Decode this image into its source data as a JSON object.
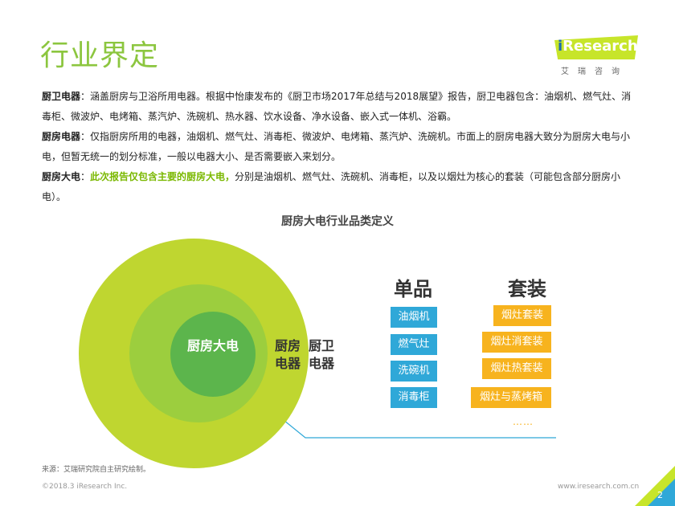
{
  "title": "行业界定",
  "logo": {
    "prefix": "i",
    "name": "Research",
    "subtitle": "艾瑞咨询"
  },
  "paragraphs": {
    "p1_label": "厨卫电器",
    "p1_text": "：涵盖厨房与卫浴所用电器。根据中怡康发布的《厨卫市场2017年总结与2018展望》报告，厨卫电器包含：油烟机、燃气灶、消毒柜、微波炉、电烤箱、蒸汽炉、洗碗机、热水器、饮水设备、净水设备、嵌入式一体机、浴霸。",
    "p2_label": "厨房电器",
    "p2_text": "：仅指厨房所用的电器，油烟机、燃气灶、消毒柜、微波炉、电烤箱、蒸汽炉、洗碗机。市面上的厨房电器大致分为厨房大电与小电，但暂无统一的划分标准，一般以电器大小、是否需要嵌入来划分。",
    "p3_label": "厨房大电",
    "p3_colon": "：",
    "p3_highlight": "此次报告仅包含主要的厨房大电，",
    "p3_text": "分别是油烟机、燃气灶、洗碗机、消毒柜，以及以烟灶为核心的套装（可能包含部分厨房小电）。"
  },
  "diagram": {
    "title": "厨房大电行业品类定义",
    "inner_label": "厨房大电",
    "mid_label": "厨房电器",
    "outer_label": "厨卫电器",
    "single_header": "单品",
    "set_header": "套装",
    "single_items": [
      "油烟机",
      "燃气灶",
      "洗碗机",
      "消毒柜"
    ],
    "set_items": [
      "烟灶套装",
      "烟灶消套装",
      "烟灶热套装",
      "烟灶与蒸烤箱"
    ],
    "more": "……",
    "colors": {
      "outer": "#bfd630",
      "mid": "#9cce3e",
      "inner": "#5cb54c",
      "single": "#2fa8d8",
      "set": "#f7b31e"
    }
  },
  "footer": {
    "source": "来源：艾瑞研究院自主研究绘制。",
    "copyright": "©2018.3 iResearch Inc.",
    "url": "www.iresearch.com.cn",
    "page": "2"
  }
}
